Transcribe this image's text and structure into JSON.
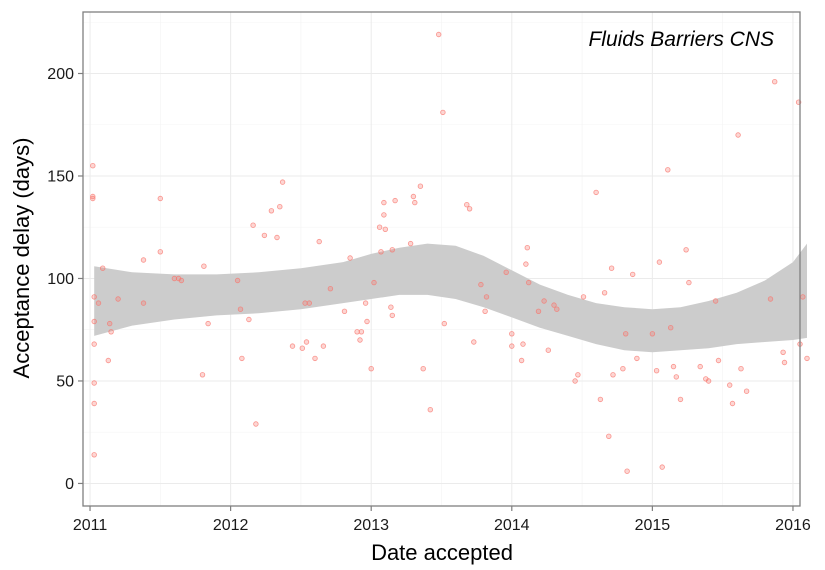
{
  "chart_data": {
    "type": "scatter",
    "annotation": "Fluids Barriers CNS",
    "xlabel": "Date accepted",
    "ylabel": "Acceptance delay (days)",
    "x_axis": {
      "min": 2010.95,
      "max": 2016.05,
      "ticks": [
        {
          "value": 2011,
          "label": "2011"
        },
        {
          "value": 2012,
          "label": "2012"
        },
        {
          "value": 2013,
          "label": "2013"
        },
        {
          "value": 2014,
          "label": "2014"
        },
        {
          "value": 2015,
          "label": "2015"
        },
        {
          "value": 2016,
          "label": "2016"
        }
      ]
    },
    "y_axis": {
      "min": -11,
      "max": 230,
      "ticks": [
        {
          "value": 0,
          "label": "0"
        },
        {
          "value": 50,
          "label": "50"
        },
        {
          "value": 100,
          "label": "100"
        },
        {
          "value": 150,
          "label": "150"
        },
        {
          "value": 200,
          "label": "200"
        }
      ]
    },
    "grid": true,
    "points_color": "#f8766d",
    "band_color": "#cccccc",
    "points": [
      [
        2011.02,
        155
      ],
      [
        2011.02,
        140
      ],
      [
        2011.02,
        139
      ],
      [
        2011.03,
        91
      ],
      [
        2011.03,
        79
      ],
      [
        2011.03,
        68
      ],
      [
        2011.03,
        49
      ],
      [
        2011.03,
        39
      ],
      [
        2011.03,
        14
      ],
      [
        2011.06,
        88
      ],
      [
        2011.09,
        105
      ],
      [
        2011.13,
        60
      ],
      [
        2011.14,
        78
      ],
      [
        2011.15,
        74
      ],
      [
        2011.2,
        90
      ],
      [
        2011.38,
        109
      ],
      [
        2011.38,
        88
      ],
      [
        2011.5,
        139
      ],
      [
        2011.5,
        113
      ],
      [
        2011.6,
        100
      ],
      [
        2011.63,
        100
      ],
      [
        2011.65,
        99
      ],
      [
        2011.8,
        53
      ],
      [
        2011.81,
        106
      ],
      [
        2011.84,
        78
      ],
      [
        2012.05,
        99
      ],
      [
        2012.07,
        85
      ],
      [
        2012.08,
        61
      ],
      [
        2012.13,
        80
      ],
      [
        2012.16,
        126
      ],
      [
        2012.18,
        29
      ],
      [
        2012.24,
        121
      ],
      [
        2012.29,
        133
      ],
      [
        2012.33,
        120
      ],
      [
        2012.35,
        135
      ],
      [
        2012.37,
        147
      ],
      [
        2012.44,
        67
      ],
      [
        2012.51,
        66
      ],
      [
        2012.53,
        88
      ],
      [
        2012.54,
        69
      ],
      [
        2012.56,
        88
      ],
      [
        2012.6,
        61
      ],
      [
        2012.63,
        118
      ],
      [
        2012.66,
        67
      ],
      [
        2012.71,
        95
      ],
      [
        2012.81,
        84
      ],
      [
        2012.85,
        110
      ],
      [
        2012.9,
        74
      ],
      [
        2012.92,
        70
      ],
      [
        2012.93,
        74
      ],
      [
        2012.96,
        88
      ],
      [
        2012.97,
        79
      ],
      [
        2013.0,
        56
      ],
      [
        2013.02,
        98
      ],
      [
        2013.06,
        125
      ],
      [
        2013.07,
        113
      ],
      [
        2013.09,
        131
      ],
      [
        2013.09,
        137
      ],
      [
        2013.1,
        124
      ],
      [
        2013.14,
        86
      ],
      [
        2013.15,
        82
      ],
      [
        2013.15,
        114
      ],
      [
        2013.17,
        138
      ],
      [
        2013.28,
        117
      ],
      [
        2013.3,
        140
      ],
      [
        2013.31,
        137
      ],
      [
        2013.35,
        145
      ],
      [
        2013.37,
        56
      ],
      [
        2013.42,
        36
      ],
      [
        2013.48,
        219
      ],
      [
        2013.51,
        181
      ],
      [
        2013.52,
        78
      ],
      [
        2013.68,
        136
      ],
      [
        2013.7,
        134
      ],
      [
        2013.73,
        69
      ],
      [
        2013.78,
        97
      ],
      [
        2013.81,
        84
      ],
      [
        2013.82,
        91
      ],
      [
        2013.96,
        103
      ],
      [
        2014.0,
        67
      ],
      [
        2014.0,
        73
      ],
      [
        2014.07,
        60
      ],
      [
        2014.08,
        68
      ],
      [
        2014.1,
        107
      ],
      [
        2014.11,
        115
      ],
      [
        2014.12,
        98
      ],
      [
        2014.19,
        84
      ],
      [
        2014.23,
        89
      ],
      [
        2014.26,
        65
      ],
      [
        2014.3,
        87
      ],
      [
        2014.32,
        85
      ],
      [
        2014.45,
        50
      ],
      [
        2014.47,
        53
      ],
      [
        2014.51,
        91
      ],
      [
        2014.6,
        142
      ],
      [
        2014.63,
        41
      ],
      [
        2014.66,
        93
      ],
      [
        2014.69,
        23
      ],
      [
        2014.71,
        105
      ],
      [
        2014.72,
        53
      ],
      [
        2014.79,
        56
      ],
      [
        2014.81,
        73
      ],
      [
        2014.82,
        6
      ],
      [
        2014.86,
        102
      ],
      [
        2014.89,
        61
      ],
      [
        2015.0,
        73
      ],
      [
        2015.03,
        55
      ],
      [
        2015.05,
        108
      ],
      [
        2015.07,
        8
      ],
      [
        2015.11,
        153
      ],
      [
        2015.13,
        76
      ],
      [
        2015.15,
        57
      ],
      [
        2015.17,
        52
      ],
      [
        2015.2,
        41
      ],
      [
        2015.24,
        114
      ],
      [
        2015.26,
        98
      ],
      [
        2015.34,
        57
      ],
      [
        2015.38,
        51
      ],
      [
        2015.4,
        50
      ],
      [
        2015.45,
        89
      ],
      [
        2015.47,
        60
      ],
      [
        2015.55,
        48
      ],
      [
        2015.57,
        39
      ],
      [
        2015.61,
        170
      ],
      [
        2015.63,
        56
      ],
      [
        2015.67,
        45
      ],
      [
        2015.84,
        90
      ],
      [
        2015.87,
        196
      ],
      [
        2015.93,
        64
      ],
      [
        2015.94,
        59
      ],
      [
        2016.04,
        186
      ],
      [
        2016.05,
        68
      ],
      [
        2016.07,
        91
      ],
      [
        2016.1,
        61
      ]
    ],
    "smooth_band": {
      "x": [
        2011.03,
        2011.3,
        2011.6,
        2011.9,
        2012.2,
        2012.5,
        2012.8,
        2013.0,
        2013.2,
        2013.4,
        2013.6,
        2013.8,
        2014.0,
        2014.2,
        2014.4,
        2014.6,
        2014.8,
        2015.0,
        2015.2,
        2015.4,
        2015.6,
        2015.8,
        2016.0,
        2016.1
      ],
      "lower": [
        72,
        77,
        80,
        82,
        83,
        85,
        88,
        90,
        92,
        92,
        90,
        86,
        81,
        76,
        72,
        68,
        65,
        64,
        65,
        66,
        68,
        69,
        70,
        71
      ],
      "upper": [
        106,
        103,
        102,
        102,
        103,
        105,
        108,
        112,
        115,
        117,
        116,
        111,
        104,
        97,
        92,
        88,
        86,
        85,
        86,
        89,
        93,
        99,
        108,
        117
      ]
    }
  }
}
